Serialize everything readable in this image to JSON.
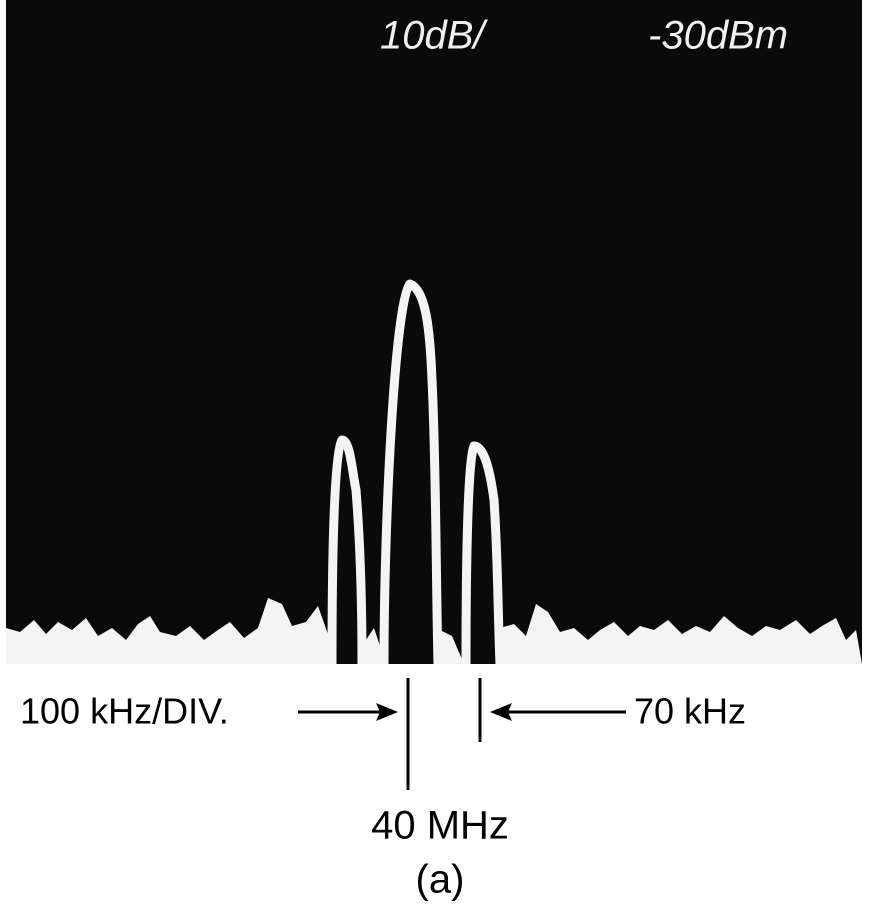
{
  "screen": {
    "scale": "10dB/",
    "reference_level": "-30dBm"
  },
  "annotations": {
    "span": "100 kHz/DIV.",
    "offset": "70 kHz",
    "center": "40 MHz",
    "caption": "(a)"
  }
}
